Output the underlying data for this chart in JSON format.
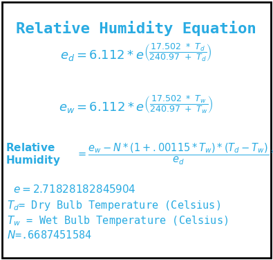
{
  "title": "Relative Humidity Equation",
  "text_color": "#29ABE2",
  "bg_color": "#FFFFFF",
  "border_color": "#000000",
  "title_fontsize": 16,
  "eq_fontsize": 12,
  "small_fontsize": 11,
  "info_fontsize": 11
}
